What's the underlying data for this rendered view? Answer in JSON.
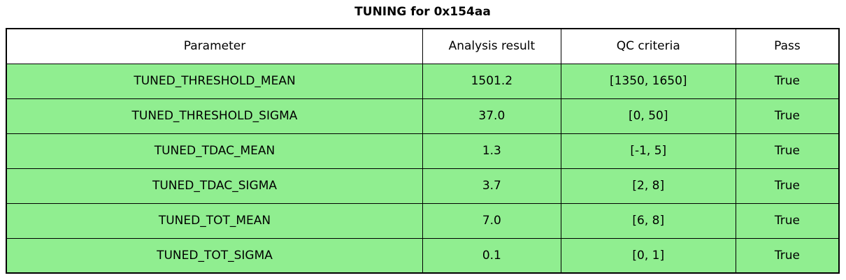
{
  "title": "TUNING for 0x154aa",
  "chart_data": {
    "type": "table",
    "title": "TUNING for 0x154aa",
    "columns": [
      "Parameter",
      "Analysis result",
      "QC criteria",
      "Pass"
    ],
    "rows": [
      [
        "TUNED_THRESHOLD_MEAN",
        "1501.2",
        "[1350, 1650]",
        "True"
      ],
      [
        "TUNED_THRESHOLD_SIGMA",
        "37.0",
        "[0, 50]",
        "True"
      ],
      [
        "TUNED_TDAC_MEAN",
        "1.3",
        "[-1, 5]",
        "True"
      ],
      [
        "TUNED_TDAC_SIGMA",
        "3.7",
        "[2, 8]",
        "True"
      ],
      [
        "TUNED_TOT_MEAN",
        "7.0",
        "[6, 8]",
        "True"
      ],
      [
        "TUNED_TOT_SIGMA",
        "0.1",
        "[0, 1]",
        "True"
      ]
    ],
    "layout": {
      "header_background": "#FFFFFF",
      "row_background": "#90EE90",
      "border_color": "#000000",
      "text_color": "#000000",
      "all_rows_pass": true
    }
  }
}
